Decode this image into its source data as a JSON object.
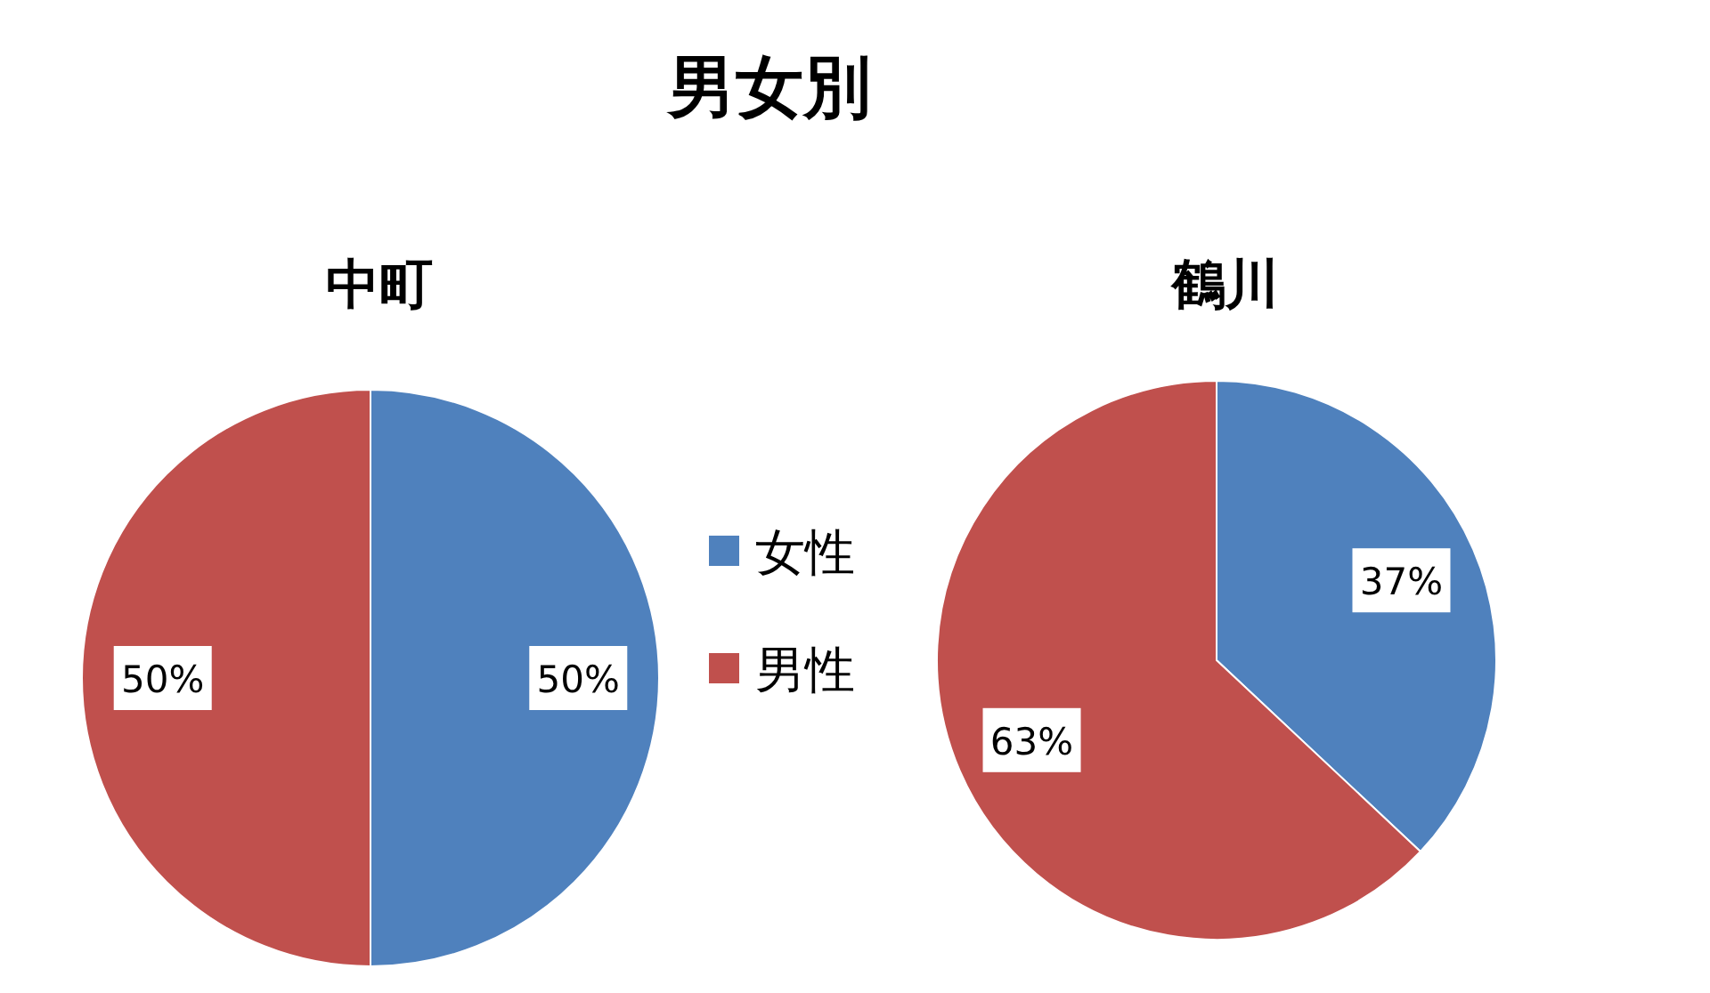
{
  "chart_data": [
    {
      "type": "other",
      "title": "男女別"
    },
    {
      "type": "pie",
      "title": "中町",
      "categories": [
        "女性",
        "男性"
      ],
      "values": [
        50,
        50
      ],
      "value_labels": [
        "50%",
        "50%"
      ],
      "colors": [
        "#4f81bd",
        "#c0504d"
      ],
      "legend": "right"
    },
    {
      "type": "pie",
      "title": "鶴川",
      "categories": [
        null,
        null
      ],
      "values": [
        37,
        63
      ],
      "value_labels": [
        "37%",
        "63%"
      ],
      "colors": [
        "#4f81bd",
        "#c0504d"
      ]
    }
  ]
}
